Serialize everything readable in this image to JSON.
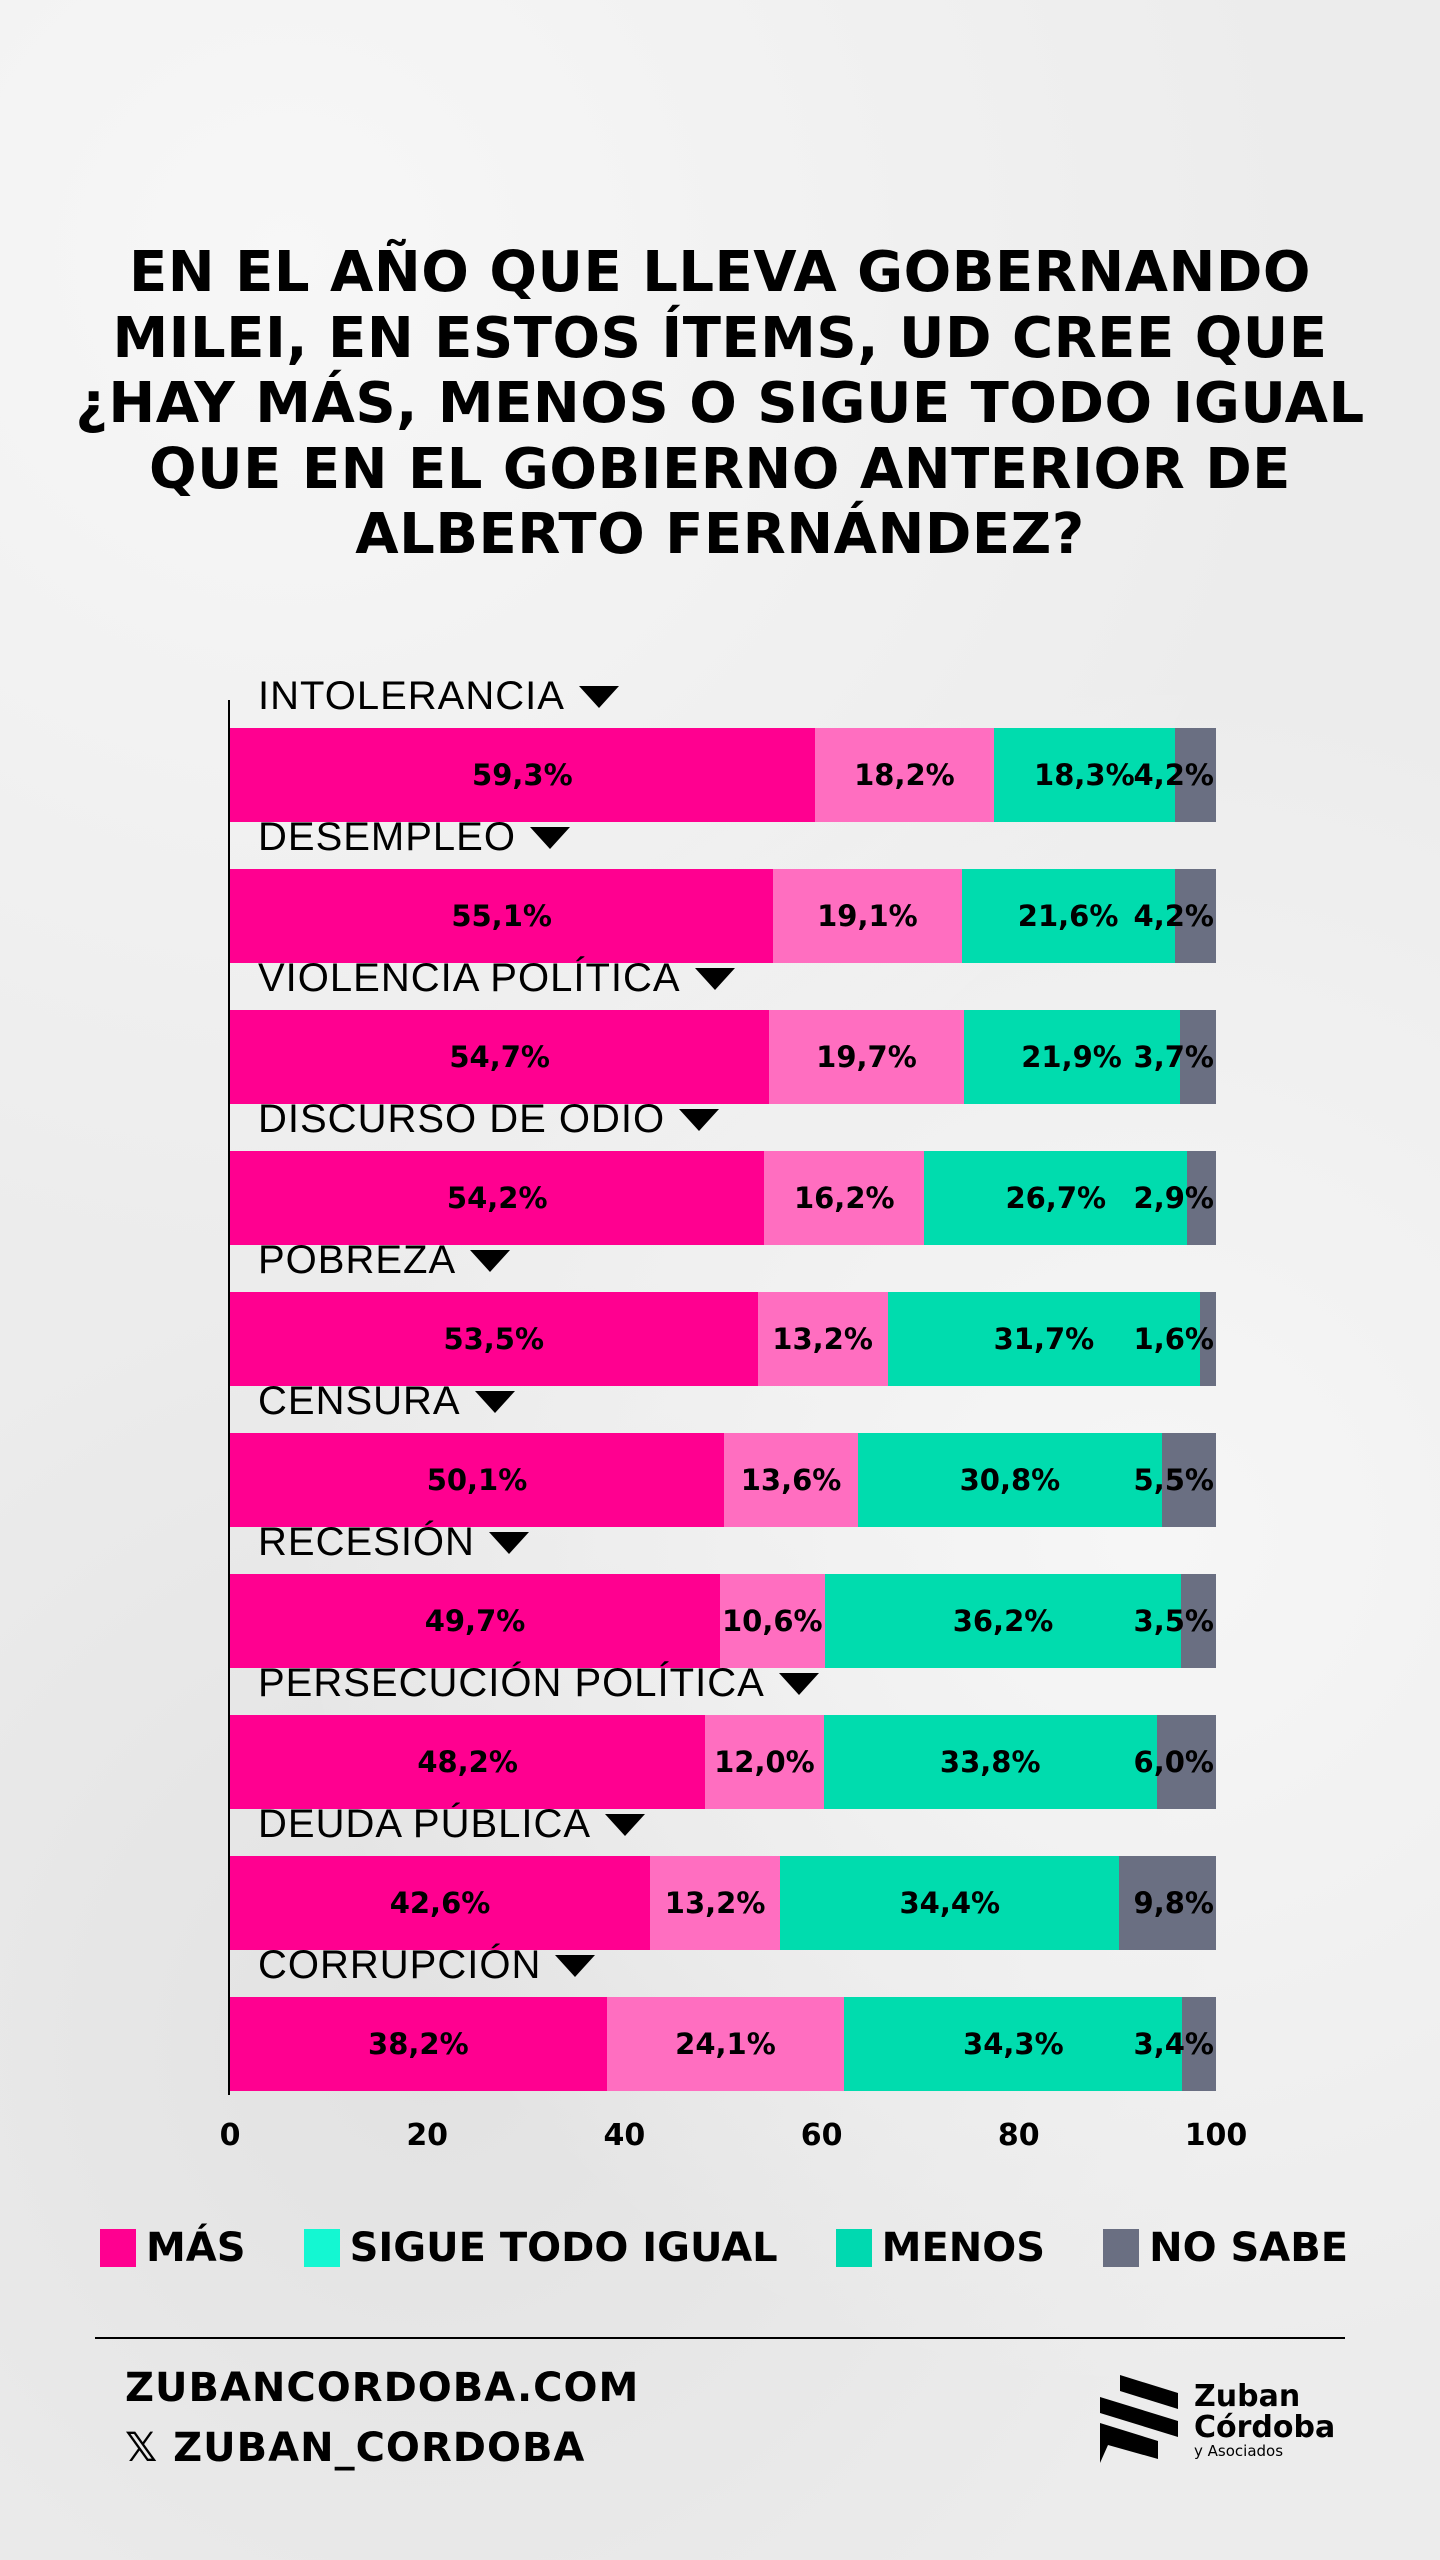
{
  "title": "EN EL AÑO QUE LLEVA GOBERNANDO MILEI, EN ESTOS ÍTEMS, UD CREE QUE ¿HAY MÁS, MENOS O SIGUE TODO IGUAL QUE EN EL GOBIERNO ANTERIOR DE ALBERTO FERNÁNDEZ?",
  "chart_data": {
    "type": "bar",
    "orientation": "horizontal",
    "stacked": true,
    "categories": [
      "INTOLERANCIA",
      "DESEMPLEO",
      "VIOLENCIA POLÍTICA",
      "DISCURSO DE ODIO",
      "POBREZA",
      "CENSURA",
      "RECESIÓN",
      "PERSECUCIÓN POLÍTICA",
      "DEUDA PÚBLICA",
      "CORRUPCIÓN"
    ],
    "series": [
      {
        "name": "MÁS",
        "color": "#ff0090",
        "legend_color": "#ff0090",
        "values": [
          59.3,
          55.1,
          54.7,
          54.2,
          53.5,
          50.1,
          49.7,
          48.2,
          42.6,
          38.2
        ],
        "labels": [
          "59,3%",
          "55,1%",
          "54,7%",
          "54,2%",
          "53,5%",
          "50,1%",
          "49,7%",
          "48,2%",
          "42,6%",
          "38,2%"
        ]
      },
      {
        "name": "SIGUE TODO IGUAL",
        "color": "#ff6ec0",
        "legend_color": "#14f7d2",
        "values": [
          18.2,
          19.1,
          19.7,
          16.2,
          13.2,
          13.6,
          10.6,
          12.0,
          13.2,
          24.1
        ],
        "labels": [
          "18,2%",
          "19,1%",
          "19,7%",
          "16,2%",
          "13,2%",
          "13,6%",
          "10,6%",
          "12,0%",
          "13,2%",
          "24,1%"
        ]
      },
      {
        "name": "MENOS",
        "color": "#00dcae",
        "legend_color": "#00d9b0",
        "values": [
          18.3,
          21.6,
          21.9,
          26.7,
          31.7,
          30.8,
          36.2,
          33.8,
          34.4,
          34.3
        ],
        "labels": [
          "18,3%",
          "21,6%",
          "21,9%",
          "26,7%",
          "31,7%",
          "30,8%",
          "36,2%",
          "33,8%",
          "34,4%",
          "34,3%"
        ]
      },
      {
        "name": "NO SABE",
        "color": "#6a6f82",
        "legend_color": "#6a6f82",
        "values": [
          4.2,
          4.2,
          3.7,
          2.9,
          1.6,
          5.5,
          3.5,
          6.0,
          9.8,
          3.4
        ],
        "labels": [
          "4,2%",
          "4,2%",
          "3,7%",
          "2,9%",
          "1,6%",
          "5,5%",
          "3,5%",
          "6,0%",
          "9,8%",
          "3,4%"
        ]
      }
    ],
    "xlim": [
      0,
      100
    ],
    "xticks": [
      "0",
      "20",
      "40",
      "60",
      "80",
      "100"
    ],
    "legend_position": "bottom"
  },
  "footer": {
    "website": "ZUBANCORDOBA.COM",
    "handle": "ZUBAN_CORDOBA",
    "x_icon": "𝕏"
  },
  "logo": {
    "line1": "Zuban",
    "line2": "Córdoba",
    "line3": "y Asociados"
  }
}
